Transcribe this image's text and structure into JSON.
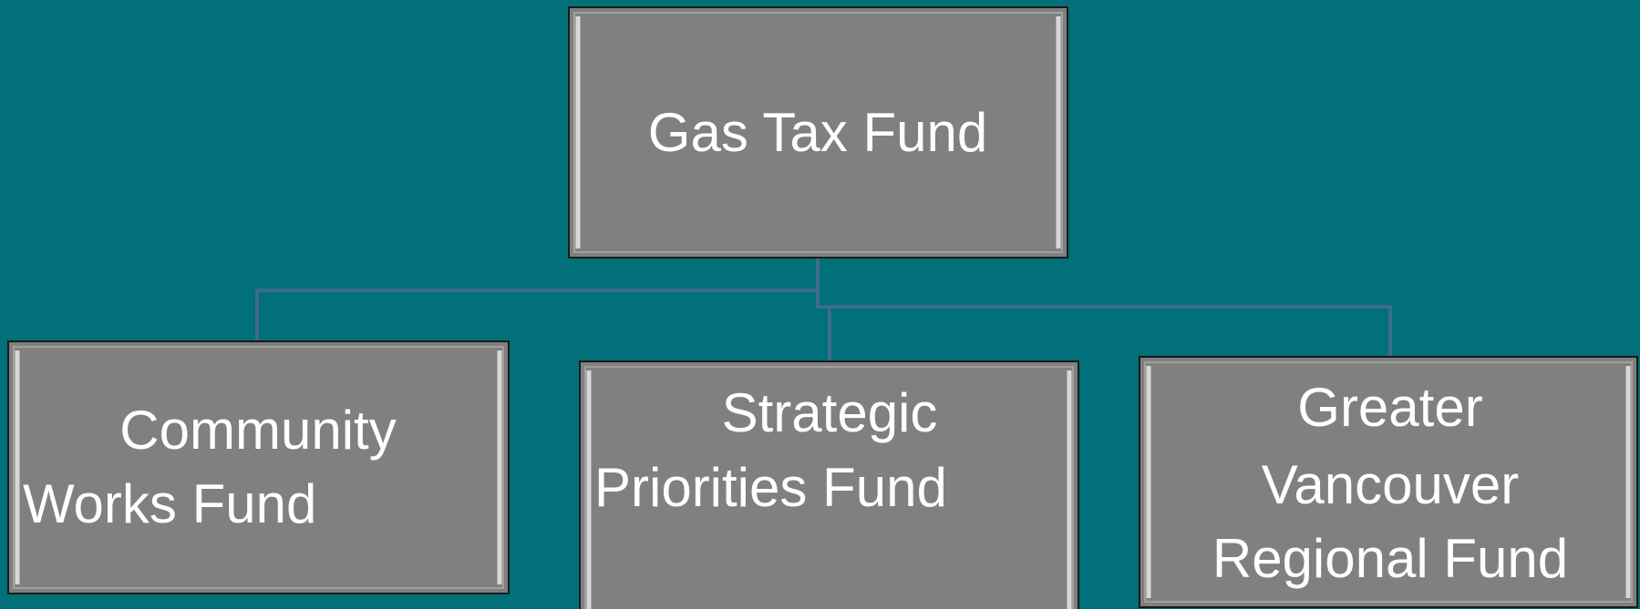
{
  "nodes": [
    {
      "lines": [
        "Gas Tax Fund"
      ]
    },
    {
      "lines": [
        "Community",
        "Works Fund"
      ]
    },
    {
      "lines": [
        "Strategic",
        "Priorities Fund"
      ]
    },
    {
      "lines": [
        "Greater",
        "Vancouver",
        "Regional Fund"
      ]
    }
  ]
}
